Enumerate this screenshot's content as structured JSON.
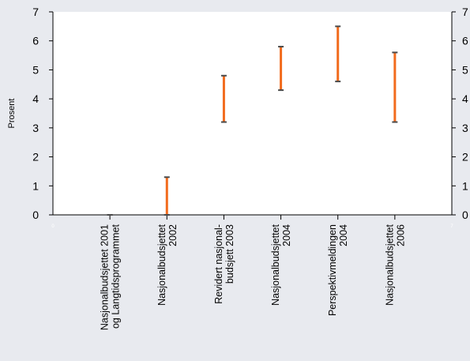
{
  "chart_data": {
    "type": "range",
    "title": "",
    "ylabel": "Prosent",
    "ylim": [
      0,
      7
    ],
    "y_ticks": [
      "0",
      "1",
      "2",
      "3",
      "4",
      "5",
      "6",
      "7"
    ],
    "x_edge_labels": [
      "0",
      "7"
    ],
    "categories": [
      [
        "Nasjonalbudsjettet 2001",
        "og Langtidsprogrammet"
      ],
      [
        "Nasjonalbudsjettet",
        "2002"
      ],
      [
        "Revidert nasjonal-",
        "budsjett  2003"
      ],
      [
        "Nasjonalbudsjettet",
        "2004"
      ],
      [
        "Perspektivmeldingen",
        "2004"
      ],
      [
        "Nasjonalbudsjettet",
        "2006"
      ]
    ],
    "ranges": [
      {
        "low": 0.0,
        "high": 0.0
      },
      {
        "low": 0.0,
        "high": 1.3
      },
      {
        "low": 3.2,
        "high": 4.8
      },
      {
        "low": 4.3,
        "high": 5.8
      },
      {
        "low": 4.6,
        "high": 6.5
      },
      {
        "low": 3.2,
        "high": 5.6
      }
    ],
    "grid": false,
    "legend": "none",
    "colors": {
      "range_bar": "#f26b1d",
      "cap": "#4a4a4a",
      "plot_bg": "#ffffff",
      "page_bg": "#e8eaef"
    }
  }
}
